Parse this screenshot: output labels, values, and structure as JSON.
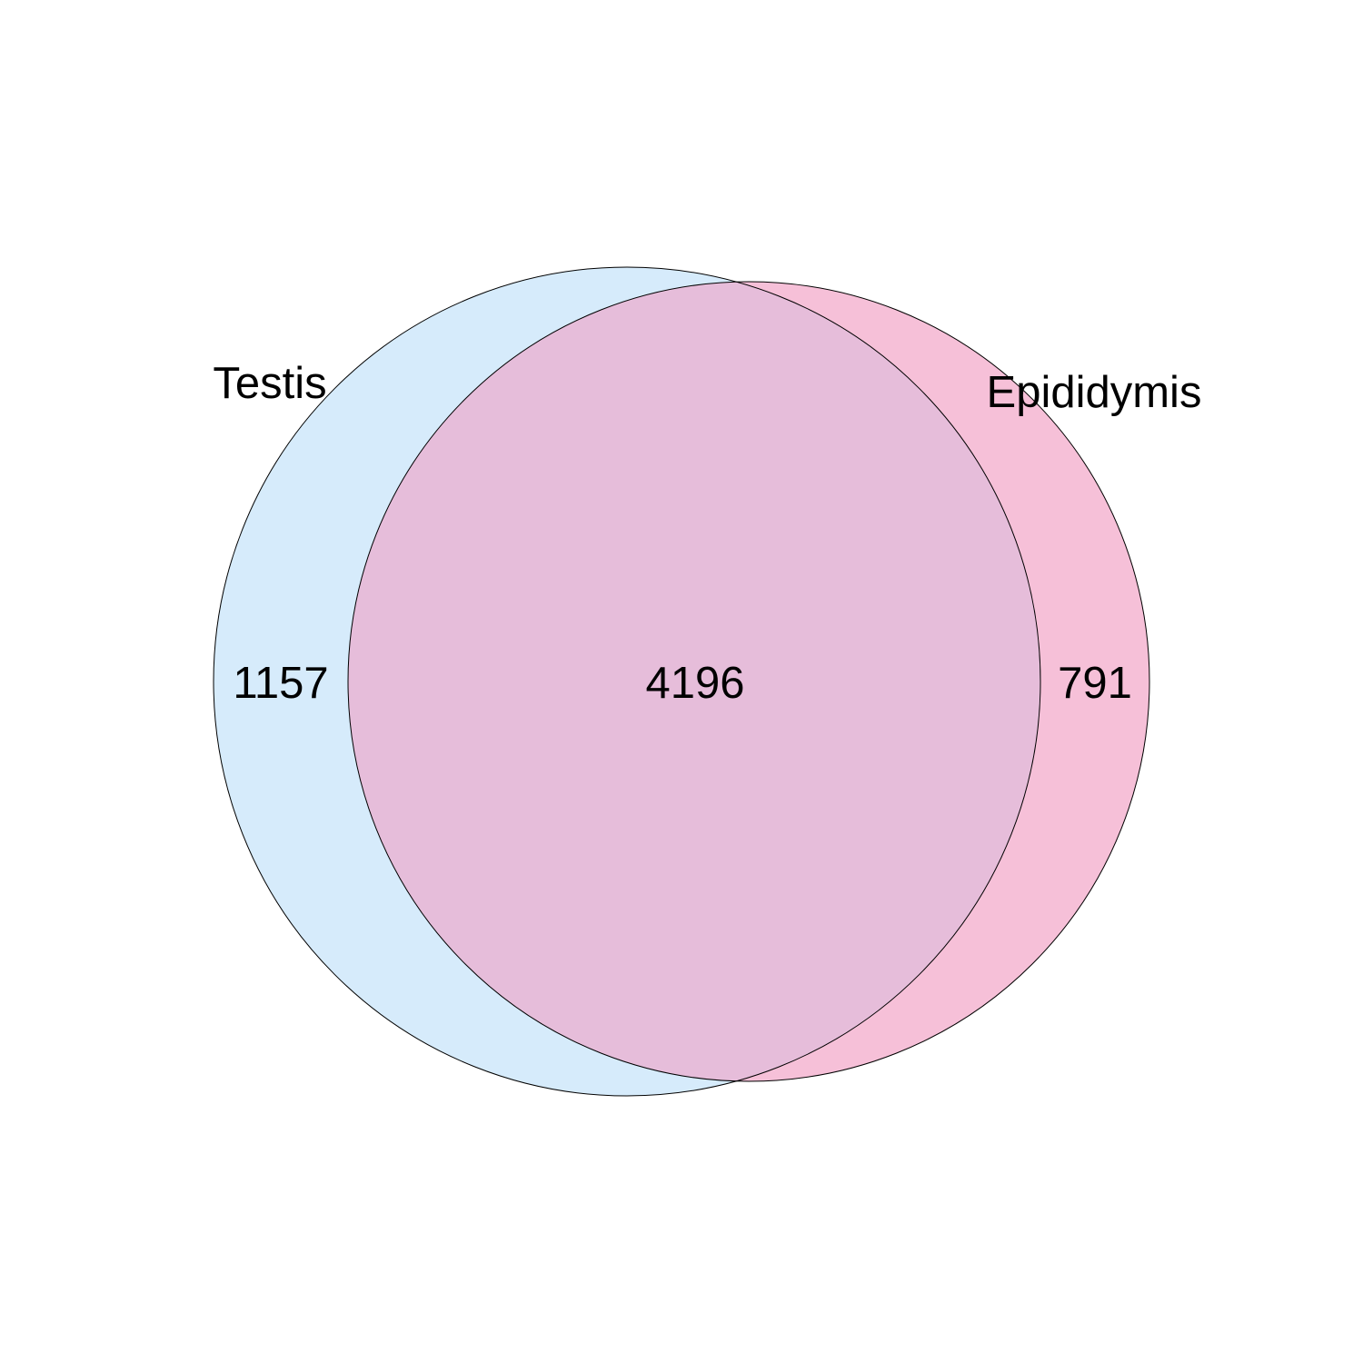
{
  "diagram": {
    "type": "venn",
    "sets": [
      {
        "name": "Testis",
        "color": "#d6ebfb",
        "only_count": "1157"
      },
      {
        "name": "Epididymis",
        "color": "#f6c0d8",
        "only_count": "791"
      }
    ],
    "intersection_count": "4196",
    "intersection_color": "#e6bdda",
    "background": "#ffffff"
  }
}
